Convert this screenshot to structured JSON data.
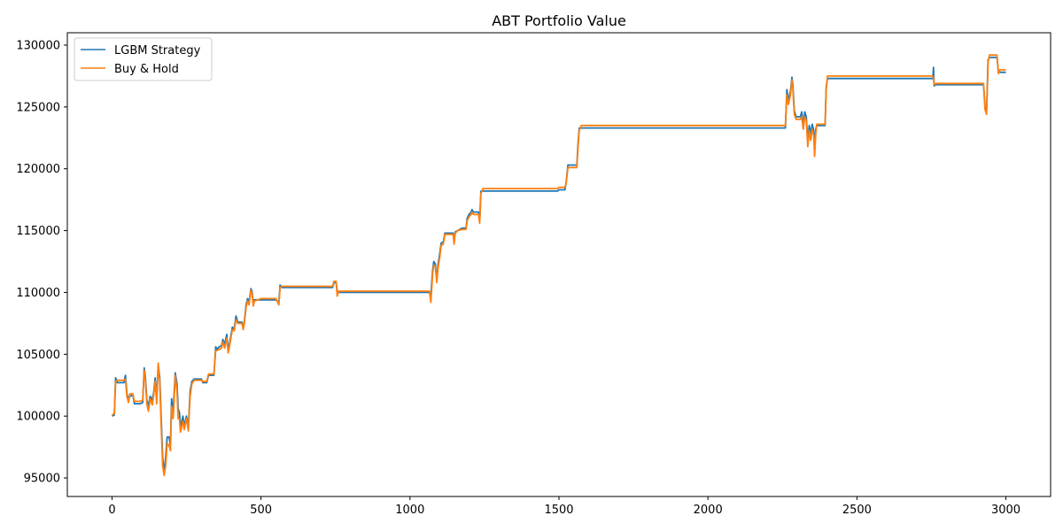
{
  "chart_data": {
    "type": "line",
    "title": "ABT Portfolio Value",
    "xlabel": "",
    "ylabel": "",
    "xlim": [
      -150,
      3150
    ],
    "ylim": [
      93500,
      131000
    ],
    "x_ticks": [
      0,
      500,
      1000,
      1500,
      2000,
      2500,
      3000
    ],
    "y_ticks": [
      95000,
      100000,
      105000,
      110000,
      115000,
      120000,
      125000,
      130000
    ],
    "grid": false,
    "legend_position": "top-left",
    "series": [
      {
        "name": "LGBM Strategy",
        "color": "#1f77b4",
        "points": [
          [
            0,
            100000
          ],
          [
            8,
            100100
          ],
          [
            12,
            103100
          ],
          [
            18,
            102700
          ],
          [
            40,
            102700
          ],
          [
            45,
            103300
          ],
          [
            50,
            101800
          ],
          [
            55,
            101300
          ],
          [
            60,
            101600
          ],
          [
            70,
            101700
          ],
          [
            75,
            101000
          ],
          [
            95,
            101000
          ],
          [
            103,
            101100
          ],
          [
            108,
            103900
          ],
          [
            112,
            103200
          ],
          [
            117,
            101300
          ],
          [
            122,
            100800
          ],
          [
            128,
            101600
          ],
          [
            135,
            101300
          ],
          [
            140,
            101900
          ],
          [
            145,
            103100
          ],
          [
            150,
            101400
          ],
          [
            155,
            104100
          ],
          [
            160,
            103200
          ],
          [
            165,
            99800
          ],
          [
            170,
            96700
          ],
          [
            175,
            95400
          ],
          [
            180,
            96700
          ],
          [
            185,
            98300
          ],
          [
            192,
            98300
          ],
          [
            196,
            97600
          ],
          [
            200,
            101400
          ],
          [
            205,
            100200
          ],
          [
            208,
            101600
          ],
          [
            212,
            103500
          ],
          [
            218,
            102600
          ],
          [
            222,
            100600
          ],
          [
            226,
            100300
          ],
          [
            230,
            99100
          ],
          [
            238,
            100000
          ],
          [
            242,
            99200
          ],
          [
            250,
            100000
          ],
          [
            256,
            99000
          ],
          [
            262,
            102000
          ],
          [
            268,
            102800
          ],
          [
            275,
            103000
          ],
          [
            300,
            103000
          ],
          [
            305,
            102700
          ],
          [
            318,
            102700
          ],
          [
            324,
            103300
          ],
          [
            342,
            103300
          ],
          [
            348,
            105600
          ],
          [
            352,
            105400
          ],
          [
            360,
            105600
          ],
          [
            368,
            105700
          ],
          [
            372,
            106200
          ],
          [
            378,
            105800
          ],
          [
            385,
            106600
          ],
          [
            390,
            105300
          ],
          [
            396,
            106100
          ],
          [
            404,
            107200
          ],
          [
            410,
            107000
          ],
          [
            416,
            108100
          ],
          [
            422,
            107600
          ],
          [
            436,
            107600
          ],
          [
            440,
            107200
          ],
          [
            444,
            107600
          ],
          [
            450,
            109000
          ],
          [
            455,
            109500
          ],
          [
            460,
            109200
          ],
          [
            466,
            110300
          ],
          [
            470,
            110100
          ],
          [
            474,
            109100
          ],
          [
            478,
            109400
          ],
          [
            500,
            109400
          ],
          [
            550,
            109400
          ],
          [
            560,
            109200
          ],
          [
            564,
            110600
          ],
          [
            570,
            110400
          ],
          [
            740,
            110400
          ],
          [
            745,
            110800
          ],
          [
            752,
            110800
          ],
          [
            756,
            110100
          ],
          [
            760,
            110000
          ],
          [
            1065,
            110000
          ],
          [
            1070,
            109800
          ],
          [
            1076,
            111800
          ],
          [
            1080,
            112500
          ],
          [
            1085,
            112300
          ],
          [
            1090,
            111100
          ],
          [
            1094,
            112200
          ],
          [
            1100,
            113200
          ],
          [
            1105,
            114000
          ],
          [
            1112,
            114100
          ],
          [
            1117,
            114800
          ],
          [
            1145,
            114800
          ],
          [
            1148,
            114200
          ],
          [
            1152,
            114900
          ],
          [
            1160,
            115000
          ],
          [
            1175,
            115200
          ],
          [
            1188,
            115200
          ],
          [
            1192,
            116000
          ],
          [
            1198,
            116300
          ],
          [
            1205,
            116500
          ],
          [
            1208,
            116700
          ],
          [
            1213,
            116500
          ],
          [
            1230,
            116500
          ],
          [
            1234,
            115800
          ],
          [
            1238,
            118200
          ],
          [
            1495,
            118200
          ],
          [
            1500,
            118300
          ],
          [
            1520,
            118300
          ],
          [
            1524,
            118900
          ],
          [
            1530,
            120300
          ],
          [
            1560,
            120300
          ],
          [
            1564,
            122000
          ],
          [
            1568,
            123300
          ],
          [
            1700,
            123300
          ],
          [
            2000,
            123300
          ],
          [
            2260,
            123300
          ],
          [
            2265,
            126400
          ],
          [
            2270,
            125500
          ],
          [
            2277,
            126300
          ],
          [
            2282,
            127400
          ],
          [
            2285,
            126800
          ],
          [
            2290,
            124700
          ],
          [
            2296,
            124200
          ],
          [
            2310,
            124200
          ],
          [
            2315,
            124600
          ],
          [
            2320,
            123500
          ],
          [
            2325,
            124600
          ],
          [
            2330,
            124200
          ],
          [
            2335,
            122200
          ],
          [
            2340,
            123500
          ],
          [
            2345,
            122800
          ],
          [
            2350,
            123600
          ],
          [
            2355,
            123100
          ],
          [
            2358,
            121500
          ],
          [
            2362,
            123200
          ],
          [
            2365,
            123500
          ],
          [
            2393,
            123500
          ],
          [
            2397,
            126600
          ],
          [
            2401,
            127300
          ],
          [
            2755,
            127300
          ],
          [
            2757,
            128200
          ],
          [
            2759,
            126700
          ],
          [
            2764,
            126800
          ],
          [
            2925,
            126800
          ],
          [
            2930,
            125000
          ],
          [
            2935,
            124600
          ],
          [
            2940,
            128800
          ],
          [
            2945,
            129000
          ],
          [
            2970,
            129000
          ],
          [
            2975,
            127800
          ],
          [
            3000,
            127800
          ]
        ]
      },
      {
        "name": "Buy & Hold",
        "color": "#ff7f0e",
        "points": [
          [
            0,
            100100
          ],
          [
            8,
            100200
          ],
          [
            12,
            102800
          ],
          [
            18,
            102900
          ],
          [
            40,
            102900
          ],
          [
            45,
            103000
          ],
          [
            50,
            101600
          ],
          [
            55,
            101100
          ],
          [
            60,
            101800
          ],
          [
            70,
            101800
          ],
          [
            75,
            101200
          ],
          [
            95,
            101200
          ],
          [
            103,
            101300
          ],
          [
            108,
            103700
          ],
          [
            112,
            102900
          ],
          [
            117,
            101000
          ],
          [
            122,
            100400
          ],
          [
            128,
            101400
          ],
          [
            135,
            100900
          ],
          [
            140,
            101700
          ],
          [
            145,
            102800
          ],
          [
            150,
            101000
          ],
          [
            155,
            104300
          ],
          [
            160,
            102800
          ],
          [
            165,
            99200
          ],
          [
            170,
            96000
          ],
          [
            175,
            95200
          ],
          [
            180,
            96000
          ],
          [
            185,
            97800
          ],
          [
            192,
            97600
          ],
          [
            196,
            97200
          ],
          [
            200,
            100800
          ],
          [
            205,
            99800
          ],
          [
            208,
            101000
          ],
          [
            212,
            103300
          ],
          [
            218,
            102000
          ],
          [
            222,
            99800
          ],
          [
            226,
            99800
          ],
          [
            230,
            98700
          ],
          [
            238,
            99600
          ],
          [
            242,
            98900
          ],
          [
            250,
            99800
          ],
          [
            256,
            98800
          ],
          [
            262,
            101600
          ],
          [
            268,
            102600
          ],
          [
            275,
            102900
          ],
          [
            300,
            102900
          ],
          [
            305,
            102800
          ],
          [
            318,
            102800
          ],
          [
            324,
            103400
          ],
          [
            342,
            103400
          ],
          [
            348,
            105300
          ],
          [
            352,
            105300
          ],
          [
            360,
            105400
          ],
          [
            368,
            105500
          ],
          [
            372,
            106000
          ],
          [
            378,
            105500
          ],
          [
            385,
            106300
          ],
          [
            390,
            105100
          ],
          [
            396,
            105900
          ],
          [
            404,
            107000
          ],
          [
            410,
            106900
          ],
          [
            416,
            107800
          ],
          [
            422,
            107500
          ],
          [
            436,
            107500
          ],
          [
            440,
            107000
          ],
          [
            444,
            107500
          ],
          [
            450,
            108800
          ],
          [
            455,
            109300
          ],
          [
            460,
            109000
          ],
          [
            466,
            110200
          ],
          [
            470,
            109900
          ],
          [
            474,
            108900
          ],
          [
            478,
            109300
          ],
          [
            500,
            109500
          ],
          [
            550,
            109500
          ],
          [
            560,
            109000
          ],
          [
            564,
            110400
          ],
          [
            570,
            110500
          ],
          [
            740,
            110500
          ],
          [
            745,
            110900
          ],
          [
            752,
            110900
          ],
          [
            756,
            109700
          ],
          [
            760,
            110100
          ],
          [
            1065,
            110100
          ],
          [
            1070,
            109200
          ],
          [
            1076,
            111500
          ],
          [
            1080,
            112200
          ],
          [
            1085,
            112100
          ],
          [
            1090,
            110800
          ],
          [
            1094,
            111900
          ],
          [
            1100,
            112900
          ],
          [
            1105,
            113800
          ],
          [
            1112,
            113900
          ],
          [
            1117,
            114700
          ],
          [
            1145,
            114700
          ],
          [
            1148,
            113900
          ],
          [
            1152,
            114800
          ],
          [
            1160,
            115000
          ],
          [
            1175,
            115100
          ],
          [
            1188,
            115100
          ],
          [
            1192,
            115800
          ],
          [
            1198,
            116100
          ],
          [
            1205,
            116300
          ],
          [
            1208,
            116500
          ],
          [
            1213,
            116300
          ],
          [
            1230,
            116300
          ],
          [
            1234,
            115600
          ],
          [
            1238,
            118000
          ],
          [
            1245,
            118400
          ],
          [
            1495,
            118400
          ],
          [
            1500,
            118500
          ],
          [
            1520,
            118500
          ],
          [
            1524,
            118800
          ],
          [
            1530,
            120100
          ],
          [
            1560,
            120100
          ],
          [
            1564,
            121700
          ],
          [
            1568,
            123100
          ],
          [
            1575,
            123500
          ],
          [
            1700,
            123500
          ],
          [
            2000,
            123500
          ],
          [
            2260,
            123500
          ],
          [
            2265,
            126000
          ],
          [
            2270,
            125200
          ],
          [
            2277,
            126000
          ],
          [
            2282,
            127200
          ],
          [
            2285,
            126500
          ],
          [
            2290,
            124400
          ],
          [
            2296,
            124000
          ],
          [
            2310,
            124000
          ],
          [
            2315,
            124200
          ],
          [
            2320,
            123200
          ],
          [
            2325,
            124200
          ],
          [
            2330,
            123900
          ],
          [
            2335,
            121800
          ],
          [
            2340,
            123100
          ],
          [
            2345,
            122300
          ],
          [
            2350,
            123200
          ],
          [
            2355,
            122700
          ],
          [
            2358,
            121000
          ],
          [
            2362,
            122800
          ],
          [
            2365,
            123600
          ],
          [
            2393,
            123600
          ],
          [
            2397,
            126400
          ],
          [
            2401,
            127500
          ],
          [
            2755,
            127500
          ],
          [
            2757,
            127300
          ],
          [
            2759,
            126800
          ],
          [
            2764,
            126900
          ],
          [
            2925,
            126900
          ],
          [
            2930,
            124800
          ],
          [
            2935,
            124400
          ],
          [
            2940,
            128600
          ],
          [
            2945,
            129200
          ],
          [
            2970,
            129200
          ],
          [
            2975,
            127700
          ],
          [
            2980,
            128000
          ],
          [
            3000,
            128000
          ]
        ]
      }
    ]
  }
}
